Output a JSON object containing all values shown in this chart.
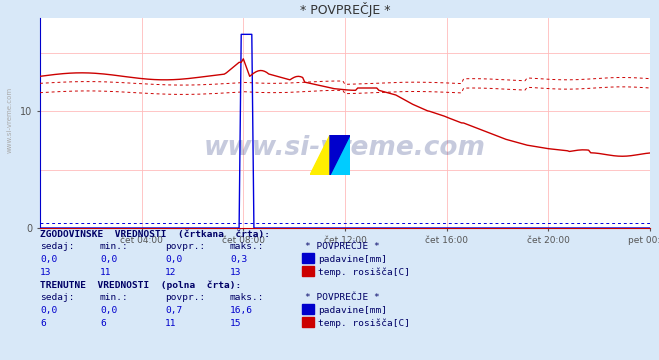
{
  "title": "* POVPREČJE *",
  "bg_color": "#d8e8f8",
  "plot_bg_color": "#ffffff",
  "x_tick_labels": [
    "čet 04:00",
    "čet 08:00",
    "čet 12:00",
    "čet 16:00",
    "čet 20:00",
    "pet 00:00"
  ],
  "x_tick_positions": [
    48,
    96,
    144,
    192,
    240,
    288
  ],
  "y_tick_positions": [
    0,
    10
  ],
  "watermark": "www.si-vreme.com",
  "blue_color": "#0000dd",
  "red_color": "#cc0000",
  "legend_hist_title": "ZGODOVINSKE  VREDNOSTI  (črtkana  črta):",
  "legend_curr_title": "TRENUTNE  VREDNOSTI  (polna  črta):",
  "legend_hist_headers": "  sedaj:      min.:     povpr.:     maks.:",
  "legend_curr_headers": "  sedaj:      min.:     povpr.:     maks.:",
  "legend_hist_row1": "    0,0        0,0        0,0        0,3",
  "legend_hist_row2": "     13         11         12         13",
  "legend_curr_row1": "    0,0        0,0        0,7       16,6",
  "legend_curr_row2": "      6          6         11         15",
  "legend_star": "* POVPREČJE *",
  "legend_hist_label1": "padavine[mm]",
  "legend_hist_label2": "temp. rosišča[C]",
  "legend_curr_label1": "padavine[mm]",
  "legend_curr_label2": "temp. rosišča[C]"
}
